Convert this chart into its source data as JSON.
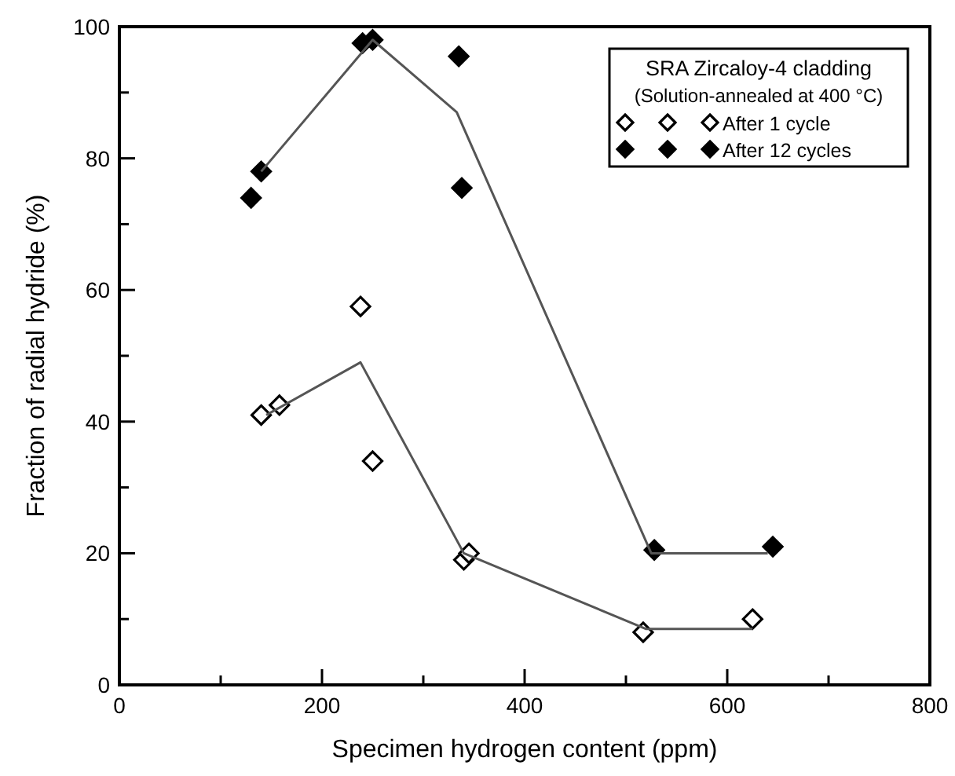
{
  "chart_data": {
    "type": "scatter",
    "xlabel": "Specimen hydrogen content (ppm)",
    "ylabel": "Fraction of radial hydride (%)",
    "legend_title": "SRA Zircaloy-4 cladding",
    "annotations": [
      "(Solution-annealed at 400 °C)"
    ],
    "xlim": [
      0,
      800
    ],
    "ylim": [
      0,
      100
    ],
    "xticks": [
      0,
      {
        "value": 100,
        "label": null
      },
      200,
      {
        "value": 300,
        "label": null
      },
      400,
      {
        "value": 500,
        "label": null
      },
      600,
      {
        "value": 700,
        "label": null
      },
      800
    ],
    "yticks": [
      0,
      {
        "value": 10,
        "label": null
      },
      20,
      {
        "value": 30,
        "label": null
      },
      40,
      {
        "value": 50,
        "label": null
      },
      60,
      {
        "value": 70,
        "label": null
      },
      80,
      {
        "value": 90,
        "label": null
      },
      100
    ],
    "grid": false,
    "legend": "top right",
    "marker": "diamond",
    "series": [
      {
        "name": "After 1 cycle",
        "color": "#ffffff",
        "x": [
          140,
          158,
          238,
          250,
          340,
          345,
          517,
          625
        ],
        "values": [
          41,
          42.5,
          57.5,
          34,
          19,
          20,
          8,
          10
        ]
      },
      {
        "name": "After 12 cycles",
        "color": "#000000",
        "x": [
          130,
          140,
          240,
          250,
          335,
          338,
          528,
          645
        ],
        "values": [
          74,
          78,
          97.5,
          98,
          95.5,
          75.5,
          20.5,
          21
        ]
      },
      {
        "type": "line",
        "color": "#555555",
        "marker": "none",
        "x": [
          145,
          238,
          340,
          520,
          625
        ],
        "values": [
          41,
          49,
          20,
          8.5,
          8.5
        ]
      },
      {
        "type": "line",
        "color": "#555555",
        "marker": "none",
        "x": [
          140,
          250,
          333,
          525,
          640
        ],
        "values": [
          78,
          98,
          87,
          20,
          20
        ]
      }
    ]
  }
}
